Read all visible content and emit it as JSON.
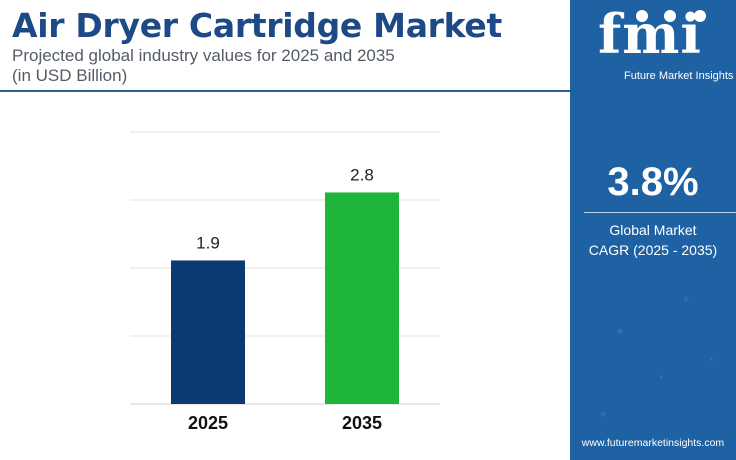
{
  "header": {
    "title": "Air Dryer Cartridge Market",
    "subtitle_line1": "Projected global industry values for 2025 and 2035",
    "subtitle_line2": "(in USD Billion)"
  },
  "sidebar": {
    "logo_text": "fmi",
    "logo_tagline": "Future Market Insights",
    "cagr_value": "3.8%",
    "cagr_label_line1": "Global Market",
    "cagr_label_line2": "CAGR (2025 - 2035)",
    "website": "www.futuremarketinsights.com"
  },
  "colors": {
    "title": "#1d4a86",
    "sidebar": "#1f62a3",
    "bar_2025": "#0b3a73",
    "bar_2035": "#1fb53a"
  },
  "chart_data": {
    "type": "bar",
    "categories": [
      "2025",
      "2035"
    ],
    "values": [
      1.9,
      2.8
    ],
    "data_labels": [
      "1.9",
      "2.8"
    ],
    "bar_colors": [
      "#0b3a73",
      "#1fb53a"
    ],
    "ylim": [
      0,
      3.6
    ],
    "grid": true,
    "xlabel": "",
    "ylabel": ""
  }
}
